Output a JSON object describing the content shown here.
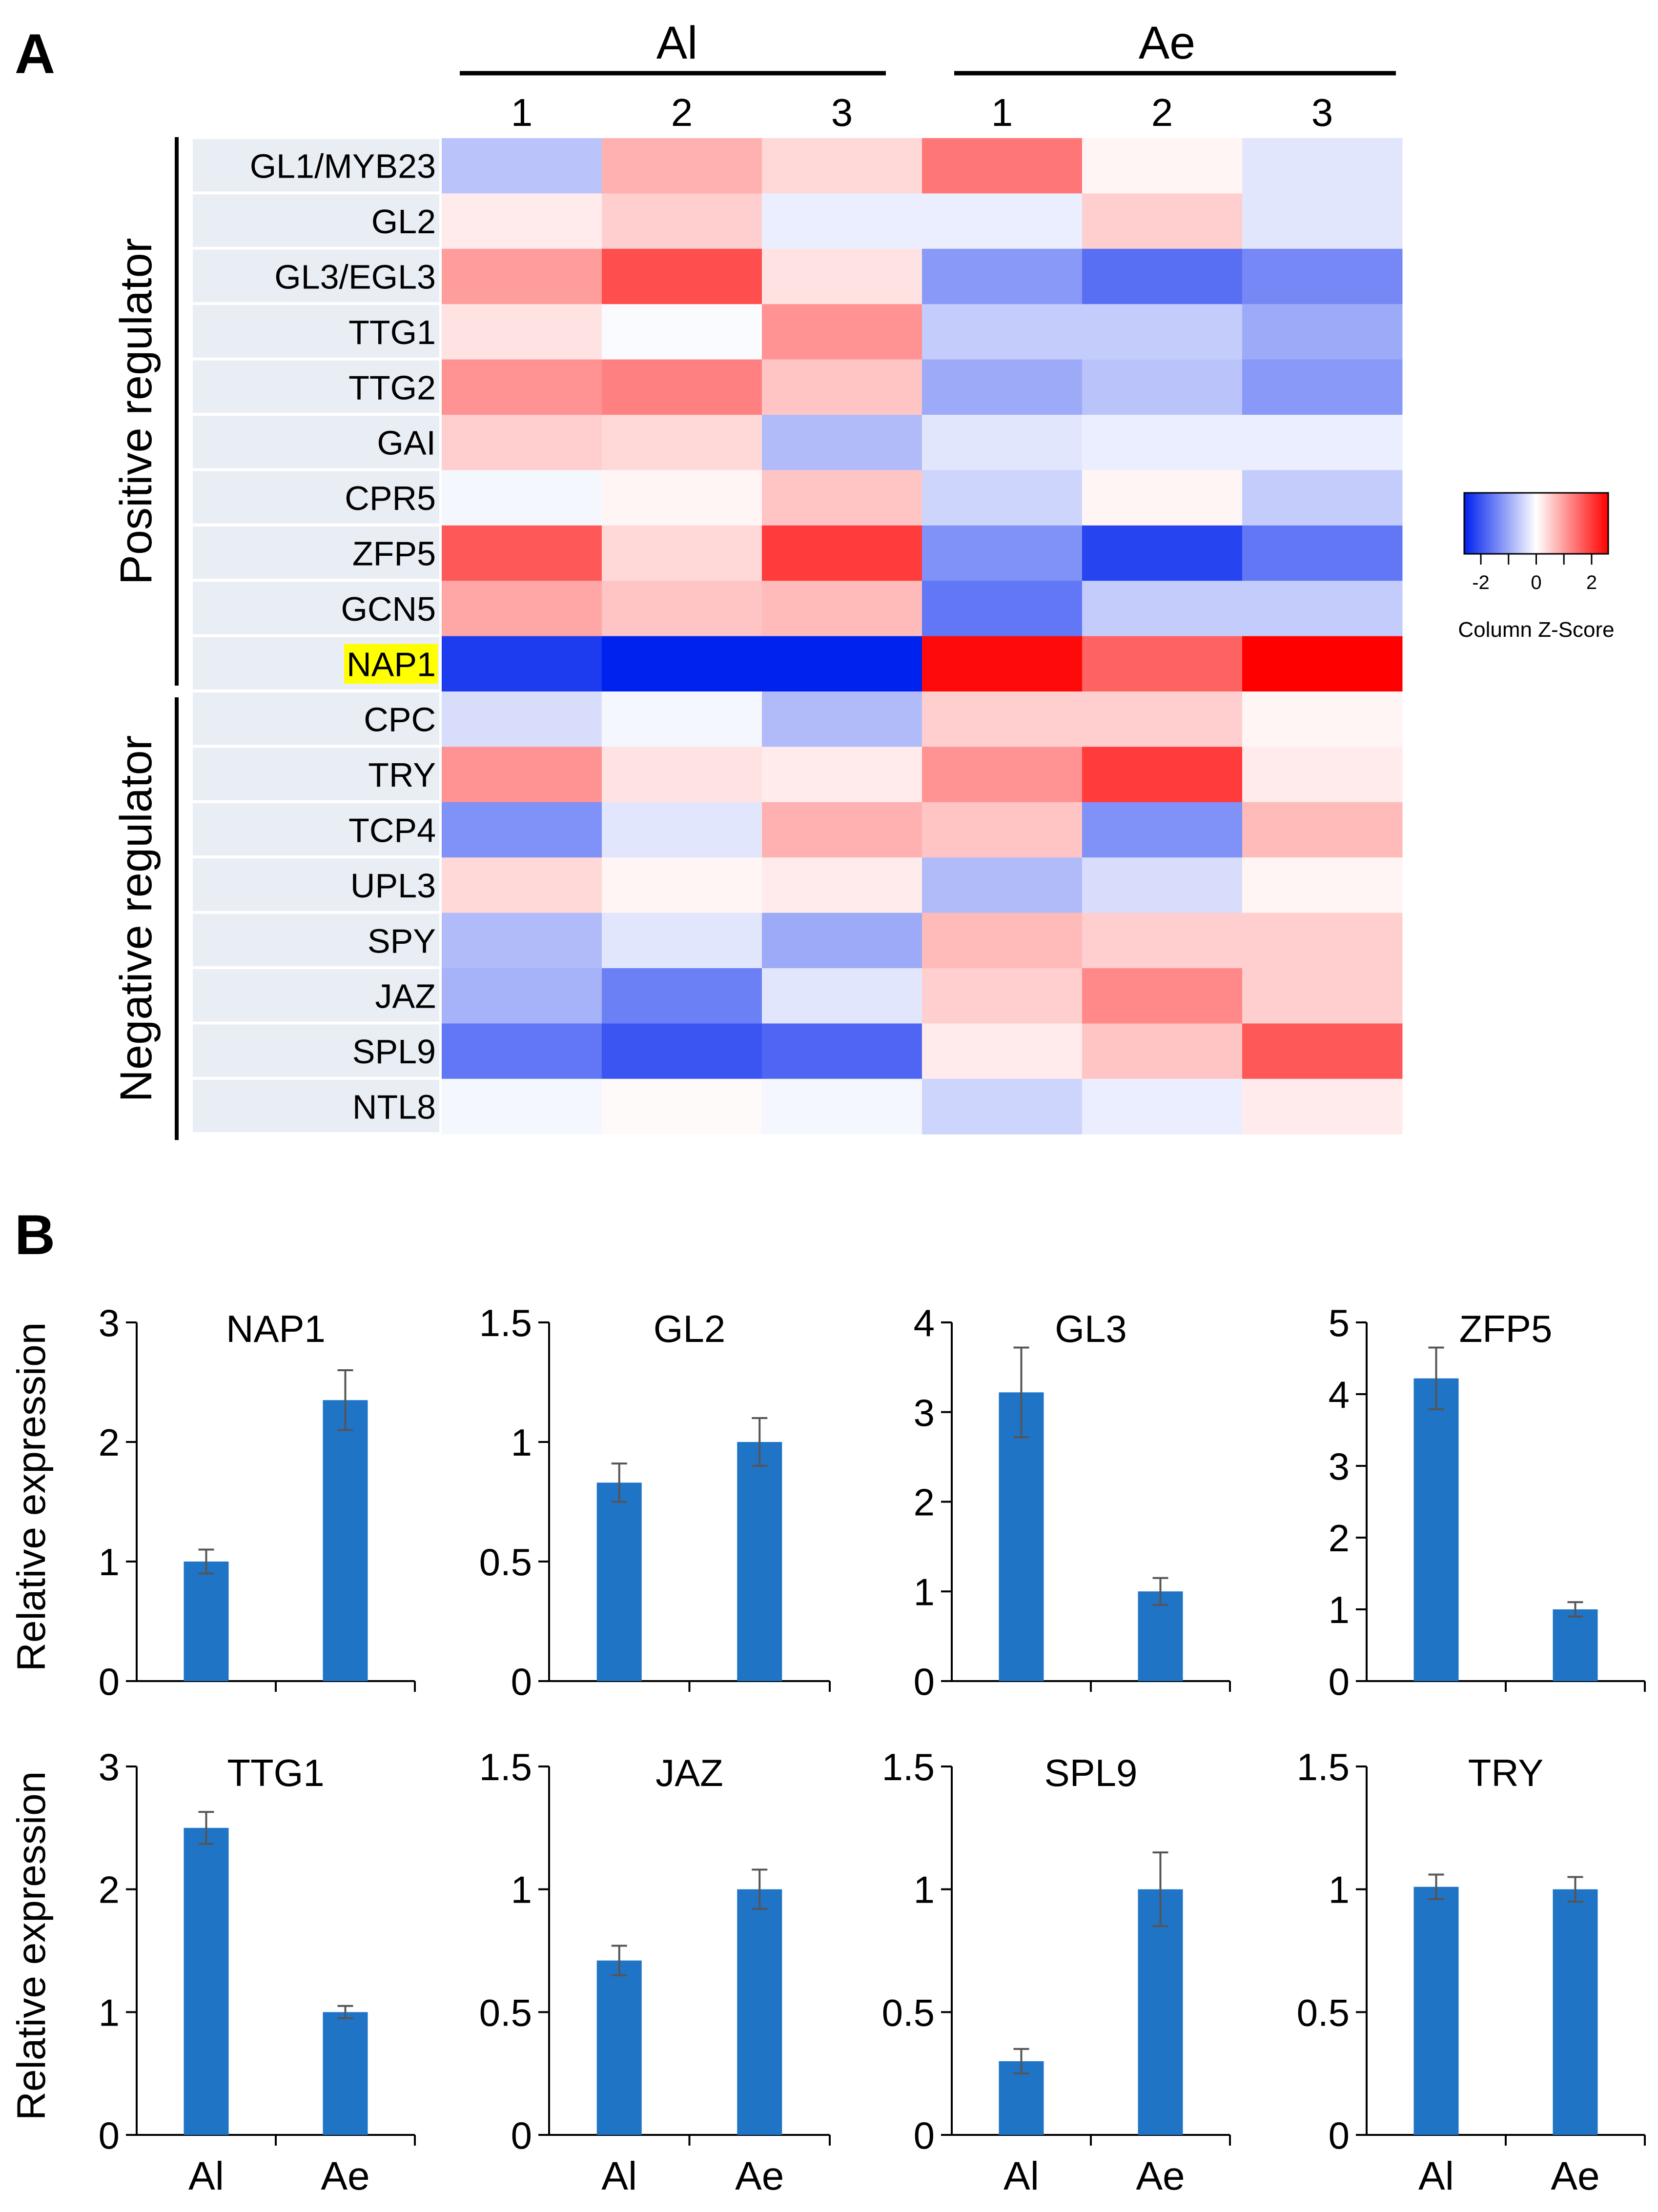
{
  "panel_labels": {
    "a": "A",
    "b": "B"
  },
  "chart_data": [
    {
      "type": "heatmap",
      "panel": "A",
      "group_labels": [
        "Al",
        "Ae"
      ],
      "columns": [
        "1",
        "2",
        "3",
        "1",
        "2",
        "3"
      ],
      "rows": [
        "GL1/MYB23",
        "GL2",
        "GL3/EGL3",
        "TTG1",
        "TTG2",
        "GAI",
        "CPR5",
        "ZFP5",
        "GCN5",
        "NAP1",
        "CPC",
        "TRY",
        "TCP4",
        "UPL3",
        "SPY",
        "JAZ",
        "SPL9",
        "NTL8"
      ],
      "highlighted_row": "NAP1",
      "row_groups": [
        {
          "label": "Positive regulator",
          "from": 0,
          "to": 9
        },
        {
          "label": "Negative regulator",
          "from": 10,
          "to": 17
        }
      ],
      "values": [
        [
          -0.7,
          0.8,
          0.4,
          1.4,
          0.1,
          -0.3
        ],
        [
          0.2,
          0.5,
          -0.2,
          -0.2,
          0.5,
          -0.3
        ],
        [
          1.0,
          1.8,
          0.3,
          -1.2,
          -1.7,
          -1.4
        ],
        [
          0.3,
          -0.05,
          1.1,
          -0.6,
          -0.6,
          -1.0
        ],
        [
          1.1,
          1.3,
          0.6,
          -1.0,
          -0.7,
          -1.2
        ],
        [
          0.5,
          0.4,
          -0.8,
          -0.3,
          -0.2,
          -0.2
        ],
        [
          -0.1,
          0.1,
          0.6,
          -0.5,
          0.1,
          -0.6
        ],
        [
          1.7,
          0.4,
          2.0,
          -1.3,
          -2.2,
          -1.6
        ],
        [
          0.9,
          0.6,
          0.7,
          -1.6,
          -0.6,
          -0.6
        ],
        [
          -2.3,
          -2.6,
          -2.6,
          2.5,
          1.6,
          2.6
        ],
        [
          -0.4,
          -0.1,
          -0.8,
          0.5,
          0.5,
          0.1
        ],
        [
          1.1,
          0.3,
          0.2,
          1.1,
          2.0,
          0.2
        ],
        [
          -1.3,
          -0.3,
          0.8,
          0.6,
          -1.3,
          0.7
        ],
        [
          0.4,
          0.1,
          0.2,
          -0.8,
          -0.4,
          0.1
        ],
        [
          -0.8,
          -0.3,
          -1.0,
          0.7,
          0.5,
          0.5
        ],
        [
          -0.9,
          -1.5,
          -0.3,
          0.5,
          1.2,
          0.5
        ],
        [
          -1.6,
          -2.0,
          -1.8,
          0.2,
          0.6,
          1.7
        ],
        [
          -0.1,
          0.05,
          -0.1,
          -0.5,
          -0.2,
          0.2
        ]
      ],
      "color_key": {
        "title": "Column Z-Score",
        "ticks": [
          "-2",
          "0",
          "2"
        ],
        "range": [
          -2.6,
          2.6
        ],
        "low_color": "#0022ee",
        "mid_color": "#ffffff",
        "high_color": "#ff0000"
      }
    },
    {
      "type": "bar",
      "panel": "B",
      "title": "NAP1",
      "categories": [
        "Al",
        "Ae"
      ],
      "values": [
        1.0,
        2.35
      ],
      "errors": [
        0.1,
        0.25
      ],
      "ylim": [
        0,
        3
      ],
      "yticks": [
        "0",
        "1",
        "2",
        "3"
      ],
      "ylabel": "Relative expression",
      "show_xticklabels": false
    },
    {
      "type": "bar",
      "panel": "B",
      "title": "GL2",
      "categories": [
        "Al",
        "Ae"
      ],
      "values": [
        0.83,
        1.0
      ],
      "errors": [
        0.08,
        0.1
      ],
      "ylim": [
        0,
        1.5
      ],
      "yticks": [
        "0",
        "0.5",
        "1",
        "1.5"
      ],
      "ylabel": "",
      "show_xticklabels": false
    },
    {
      "type": "bar",
      "panel": "B",
      "title": "GL3",
      "categories": [
        "Al",
        "Ae"
      ],
      "values": [
        3.22,
        1.0
      ],
      "errors": [
        0.5,
        0.15
      ],
      "ylim": [
        0,
        4
      ],
      "yticks": [
        "0",
        "1",
        "2",
        "3",
        "4"
      ],
      "ylabel": "",
      "show_xticklabels": false
    },
    {
      "type": "bar",
      "panel": "B",
      "title": "ZFP5",
      "categories": [
        "Al",
        "Ae"
      ],
      "values": [
        4.22,
        1.0
      ],
      "errors": [
        0.43,
        0.1
      ],
      "ylim": [
        0,
        5
      ],
      "yticks": [
        "0",
        "1",
        "2",
        "3",
        "4",
        "5"
      ],
      "ylabel": "",
      "show_xticklabels": false
    },
    {
      "type": "bar",
      "panel": "B",
      "title": "TTG1",
      "categories": [
        "Al",
        "Ae"
      ],
      "values": [
        2.5,
        1.0
      ],
      "errors": [
        0.13,
        0.05
      ],
      "ylim": [
        0,
        3
      ],
      "yticks": [
        "0",
        "1",
        "2",
        "3"
      ],
      "ylabel": "Relative expression",
      "show_xticklabels": true
    },
    {
      "type": "bar",
      "panel": "B",
      "title": "JAZ",
      "categories": [
        "Al",
        "Ae"
      ],
      "values": [
        0.71,
        1.0
      ],
      "errors": [
        0.06,
        0.08
      ],
      "ylim": [
        0,
        1.5
      ],
      "yticks": [
        "0",
        "0.5",
        "1",
        "1.5"
      ],
      "ylabel": "",
      "show_xticklabels": true
    },
    {
      "type": "bar",
      "panel": "B",
      "title": "SPL9",
      "categories": [
        "Al",
        "Ae"
      ],
      "values": [
        0.3,
        1.0
      ],
      "errors": [
        0.05,
        0.15
      ],
      "ylim": [
        0,
        1.5
      ],
      "yticks": [
        "0",
        "0.5",
        "1",
        "1.5"
      ],
      "ylabel": "",
      "show_xticklabels": true
    },
    {
      "type": "bar",
      "panel": "B",
      "title": "TRY",
      "categories": [
        "Al",
        "Ae"
      ],
      "values": [
        1.01,
        1.0
      ],
      "errors": [
        0.05,
        0.05
      ],
      "ylim": [
        0,
        1.5
      ],
      "yticks": [
        "0",
        "0.5",
        "1",
        "1.5"
      ],
      "ylabel": "",
      "show_xticklabels": true
    }
  ],
  "colors": {
    "bar": "#1f74c6",
    "error_bar": "#555555",
    "axis": "#000000",
    "row_label_bg": "#e9edf4",
    "highlight": "#ffff00"
  }
}
